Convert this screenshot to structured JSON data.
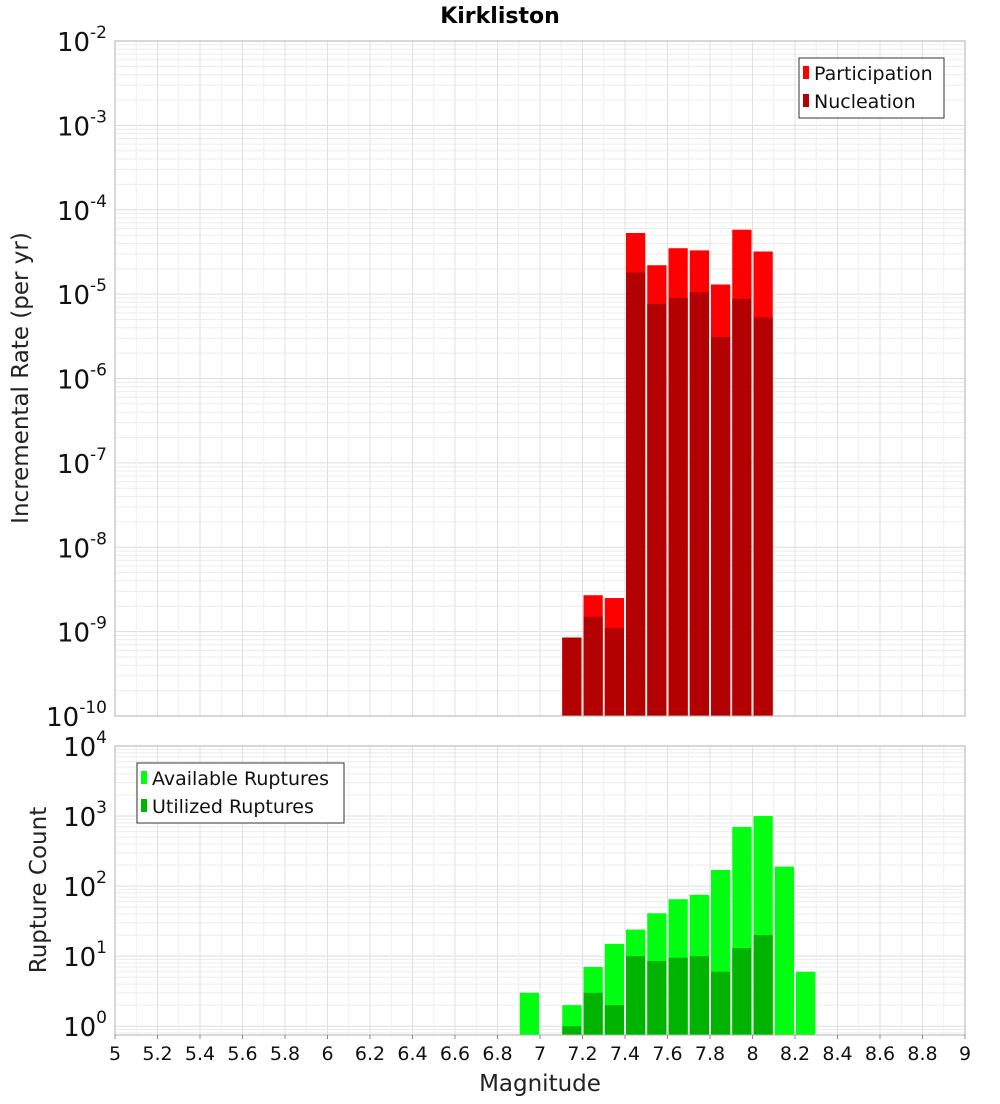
{
  "chart_data": [
    {
      "type": "bar",
      "title": "Kirkliston",
      "xlabel": "Magnitude",
      "ylabel": "Incremental Rate (per yr)",
      "y_scale": "log",
      "ylim": [
        1e-10,
        0.01
      ],
      "xlim": [
        5,
        9
      ],
      "bin_width": 0.1,
      "grid": true,
      "legend_position": "top-right",
      "y_ticks": [
        {
          "base": "10",
          "exp": "-10"
        },
        {
          "base": "10",
          "exp": "-9"
        },
        {
          "base": "10",
          "exp": "-8"
        },
        {
          "base": "10",
          "exp": "-7"
        },
        {
          "base": "10",
          "exp": "-6"
        },
        {
          "base": "10",
          "exp": "-5"
        },
        {
          "base": "10",
          "exp": "-4"
        },
        {
          "base": "10",
          "exp": "-3"
        },
        {
          "base": "10",
          "exp": "-2"
        }
      ],
      "series": [
        {
          "name": "Participation",
          "color": "#ff0000",
          "x": [
            7.15,
            7.25,
            7.35,
            7.45,
            7.55,
            7.65,
            7.75,
            7.85,
            7.95,
            8.05
          ],
          "values": [
            8.5e-10,
            2.7e-09,
            2.5e-09,
            5.3e-05,
            2.2e-05,
            3.5e-05,
            3.3e-05,
            1.3e-05,
            5.8e-05,
            3.2e-05
          ]
        },
        {
          "name": "Nucleation",
          "color": "#b30000",
          "x": [
            7.15,
            7.25,
            7.35,
            7.45,
            7.55,
            7.65,
            7.75,
            7.85,
            7.95,
            8.05
          ],
          "values": [
            8.5e-10,
            1.5e-09,
            1.1e-09,
            1.8e-05,
            7.6e-06,
            9e-06,
            1.05e-05,
            3.1e-06,
            8.8e-06,
            5.3e-06
          ]
        }
      ]
    },
    {
      "type": "bar",
      "xlabel": "Magnitude",
      "ylabel": "Rupture Count",
      "y_scale": "log",
      "ylim": [
        0.75,
        10000
      ],
      "xlim": [
        5,
        9
      ],
      "bin_width": 0.1,
      "grid": true,
      "legend_position": "top-left",
      "x_tick_labels": [
        "5",
        "5.2",
        "5.4",
        "5.6",
        "5.8",
        "6",
        "6.2",
        "6.4",
        "6.6",
        "6.8",
        "7",
        "7.2",
        "7.4",
        "7.6",
        "7.8",
        "8",
        "8.2",
        "8.4",
        "8.6",
        "8.8",
        "9"
      ],
      "y_ticks": [
        {
          "base": "10",
          "exp": "0"
        },
        {
          "base": "10",
          "exp": "1"
        },
        {
          "base": "10",
          "exp": "2"
        },
        {
          "base": "10",
          "exp": "3"
        },
        {
          "base": "10",
          "exp": "4"
        }
      ],
      "series": [
        {
          "name": "Available Ruptures",
          "color": "#00ff11",
          "x": [
            6.95,
            7.15,
            7.25,
            7.35,
            7.45,
            7.55,
            7.65,
            7.75,
            7.85,
            7.95,
            8.05,
            8.15,
            8.25
          ],
          "values": [
            3,
            2,
            7,
            15,
            24,
            41,
            65,
            75,
            170,
            700,
            1000,
            190,
            6
          ]
        },
        {
          "name": "Utilized Ruptures",
          "color": "#00b300",
          "x": [
            7.15,
            7.25,
            7.35,
            7.45,
            7.55,
            7.65,
            7.75,
            7.85,
            7.95,
            8.05
          ],
          "values": [
            1,
            3,
            2,
            10,
            8.5,
            9.5,
            10,
            6,
            13,
            20
          ]
        }
      ]
    }
  ]
}
